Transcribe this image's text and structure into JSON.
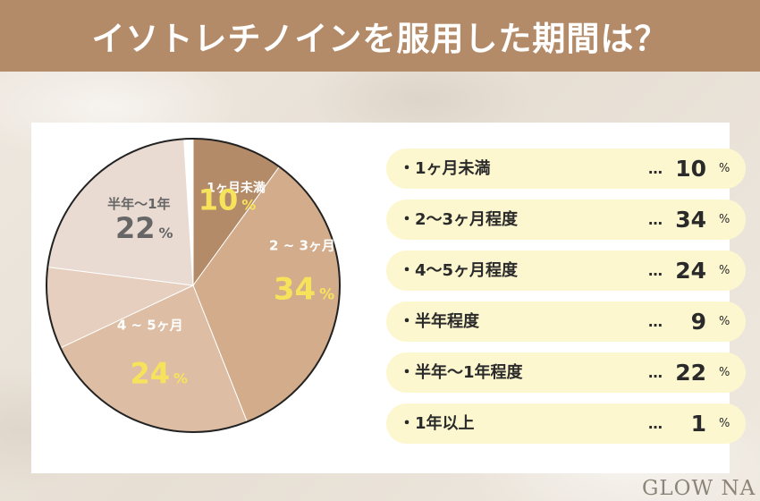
{
  "title": "イソトレチノインを服用した期間は？",
  "logo": "GLOW NA",
  "colors": {
    "header": "#b48b68",
    "legend_bg": "#fdf7d0",
    "pie_label_text": "#ffffff",
    "pie_value_highlight": "#f6e35b",
    "pie_value_muted": "#666666"
  },
  "chart_data": {
    "type": "pie",
    "slices": [
      {
        "label": "1ヶ月未満",
        "legend_label": "・1ヶ月未満",
        "value": 10,
        "unit": "%",
        "color": "#b48b68",
        "pie_label": "1ヶ月未満"
      },
      {
        "label": "2〜3ヶ月程度",
        "legend_label": "・2〜3ヶ月程度",
        "value": 34,
        "unit": "%",
        "color": "#d2ac8b",
        "pie_label": "2 ~ 3ヶ月"
      },
      {
        "label": "4〜5ヶ月程度",
        "legend_label": "・4〜5ヶ月程度",
        "value": 24,
        "unit": "%",
        "color": "#ddbea4",
        "pie_label": "4 ~ 5ヶ月"
      },
      {
        "label": "半年程度",
        "legend_label": "・半年程度",
        "value": 9,
        "unit": "%",
        "color": "#e6cfbe",
        "pie_label": ""
      },
      {
        "label": "半年〜1年程度",
        "legend_label": "・半年〜1年程度",
        "value": 22,
        "unit": "%",
        "color": "#e9dbd2",
        "pie_label": "半年〜1年"
      },
      {
        "label": "1年以上",
        "legend_label": "・1年以上",
        "value": 1,
        "unit": "%",
        "color": "#ffffff",
        "pie_label": ""
      }
    ],
    "legend_dots": "…"
  }
}
